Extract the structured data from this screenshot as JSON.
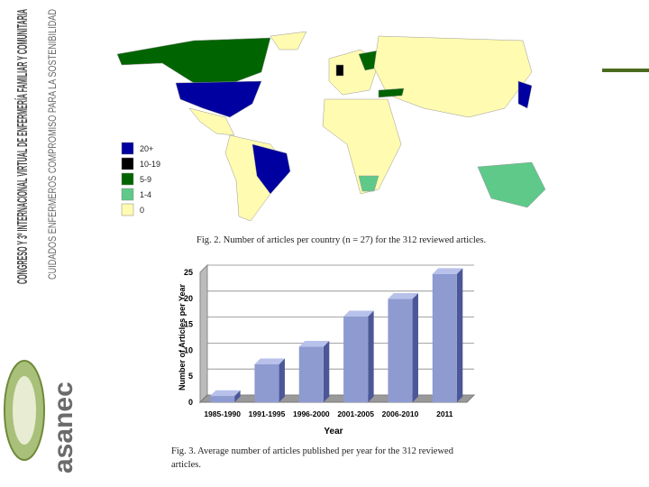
{
  "slide": {
    "sidebar_title": "CONGRESO Y 3º INTERNACIONAL VIRTUAL DE ENFERMERÍA FAMILIAR Y COMUNITARIA",
    "sidebar_subtitle": "CUIDADOS ENFERMEROS COMPROMISO PARA LA SOSTENIBILIDAD",
    "logo": "asanec",
    "map_legend": [
      {
        "label": "20+",
        "color": "#0000a0"
      },
      {
        "label": "10-19",
        "color": "#000000"
      },
      {
        "label": "5-9",
        "color": "#006400"
      },
      {
        "label": "1-4",
        "color": "#5fc98a"
      },
      {
        "label": "0",
        "color": "#fffbb0"
      }
    ],
    "map_caption": "Fig. 2. Number of articles per country (n = 27) for the 312 reviewed articles."
  },
  "chart_data": {
    "type": "bar3d",
    "y_label": "Number of Articles per Year",
    "x_label": "Year",
    "caption": "Fig. 3. Average number of articles published per year for the 312 reviewed articles.",
    "categories": [
      "1985-1990",
      "1991-1995",
      "1996-2000",
      "2001-2005",
      "2006-2010",
      "2011"
    ],
    "values": [
      1.2,
      7.3,
      10.7,
      16.5,
      19.9,
      24.7
    ],
    "color": "#8e9bd1",
    "ylim": [
      0,
      25
    ],
    "yticks": [
      0,
      5,
      10,
      15,
      20,
      25
    ],
    "grid": true
  }
}
